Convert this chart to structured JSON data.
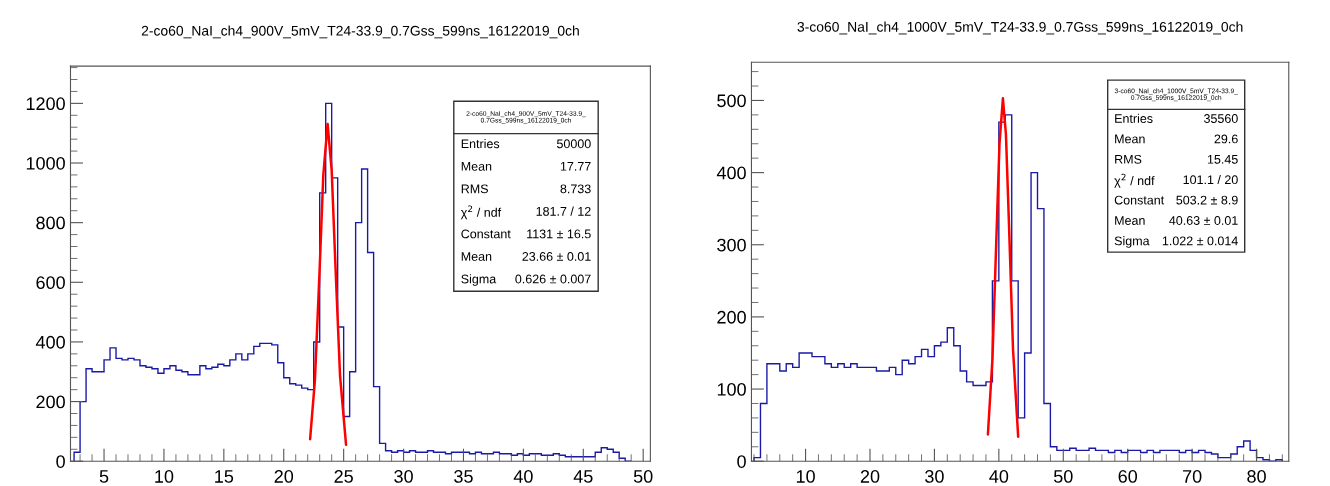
{
  "chart_data": [
    {
      "type": "histogram",
      "title": "2-co60_NaI_ch4_900V_5mV_T24-33.9_0.7Gss_599ns_16122019_0ch",
      "color": "#1a1aa6",
      "bins": [
        2.5,
        3,
        3.5,
        4,
        4.5,
        5,
        5.5,
        6,
        6.5,
        7,
        7.5,
        8,
        8.5,
        9,
        9.5,
        10,
        10.5,
        11,
        11.5,
        12,
        12.5,
        13,
        13.5,
        14,
        14.5,
        15,
        15.5,
        16,
        16.5,
        17,
        17.5,
        18,
        18.5,
        19,
        19.5,
        20,
        20.5,
        21,
        21.5,
        22,
        22.5,
        23,
        23.5,
        24,
        24.5,
        25,
        25.5,
        26,
        26.5,
        27,
        27.5,
        28,
        28.5,
        29,
        29.5,
        30,
        30.5,
        31,
        31.5,
        32,
        32.5,
        33,
        33.5,
        34,
        34.5,
        35,
        35.5,
        36,
        36.5,
        37,
        37.5,
        38,
        38.5,
        39,
        39.5,
        40,
        40.5,
        41,
        41.5,
        42,
        42.5,
        43,
        43.5,
        44,
        44.5,
        45,
        45.5,
        46,
        46.5,
        47,
        47.5,
        48,
        48.5,
        49
      ],
      "values": [
        30,
        200,
        310,
        300,
        300,
        340,
        380,
        345,
        340,
        345,
        340,
        320,
        315,
        310,
        295,
        310,
        320,
        305,
        300,
        290,
        290,
        320,
        310,
        315,
        325,
        320,
        340,
        360,
        340,
        360,
        385,
        395,
        395,
        390,
        330,
        280,
        260,
        255,
        245,
        240,
        400,
        900,
        1200,
        950,
        450,
        150,
        300,
        800,
        980,
        700,
        250,
        60,
        35,
        30,
        35,
        30,
        35,
        30,
        30,
        35,
        30,
        30,
        25,
        30,
        30,
        30,
        25,
        30,
        25,
        25,
        30,
        25,
        25,
        20,
        25,
        20,
        25,
        25,
        20,
        20,
        25,
        20,
        15,
        15,
        15,
        15,
        15,
        30,
        45,
        40,
        30,
        10,
        0
      ],
      "series": [
        {
          "type": "line",
          "color": "#ff0000",
          "x": [
            22.2,
            22.6,
            23.0,
            23.3,
            23.66,
            24.0,
            24.3,
            24.7,
            25.2
          ],
          "values": [
            74,
            271,
            649,
            959,
            1131,
            976,
            670,
            285,
            55
          ]
        }
      ],
      "xlim": [
        2.2,
        50.6
      ],
      "ylim": [
        0,
        1325
      ],
      "xticks": [
        5,
        10,
        15,
        20,
        25,
        30,
        35,
        40,
        45,
        50
      ],
      "yticks": [
        0,
        200,
        400,
        600,
        800,
        1000,
        1200
      ],
      "grid": false,
      "annotations": [
        "2-co60_NaI_ch4_900V_5mV_T24-33.9_0.7Gss_599ns_16122019_0ch",
        "Entries",
        "50000",
        "Mean",
        "17.77",
        "RMS",
        "8.733",
        "χ$^{2}$ / ndf",
        "181.7 / 12",
        "Constant",
        "1131 ± 16.5",
        "Mean",
        "23.66 ± 0.01",
        "Sigma",
        "0.626 ± 0.007"
      ]
    },
    {
      "type": "histogram",
      "title": "3-co60_NaI_ch4_1000V_5mV_T24-33.9_0.7Gss_599ns_16122019_0ch",
      "color": "#1a1aa6",
      "bins": [
        2,
        3,
        4,
        5,
        6,
        7,
        8,
        9,
        10,
        11,
        12,
        13,
        14,
        15,
        16,
        17,
        18,
        19,
        20,
        21,
        22,
        23,
        24,
        25,
        26,
        27,
        28,
        29,
        30,
        31,
        32,
        33,
        34,
        35,
        36,
        37,
        38,
        39,
        40,
        41,
        42,
        43,
        44,
        45,
        46,
        47,
        48,
        49,
        50,
        51,
        52,
        53,
        54,
        55,
        56,
        57,
        58,
        59,
        60,
        61,
        62,
        63,
        64,
        65,
        66,
        67,
        68,
        69,
        70,
        71,
        72,
        73,
        74,
        75,
        76,
        77,
        78,
        79,
        80,
        81,
        82,
        83,
        84
      ],
      "values": [
        5,
        80,
        135,
        135,
        125,
        135,
        130,
        150,
        150,
        145,
        145,
        135,
        130,
        135,
        130,
        135,
        130,
        130,
        130,
        125,
        125,
        130,
        120,
        140,
        135,
        145,
        155,
        145,
        160,
        165,
        185,
        160,
        125,
        110,
        105,
        105,
        110,
        250,
        470,
        480,
        250,
        60,
        150,
        400,
        350,
        80,
        20,
        15,
        15,
        18,
        15,
        15,
        18,
        15,
        15,
        12,
        15,
        12,
        15,
        15,
        12,
        15,
        12,
        15,
        15,
        15,
        12,
        15,
        12,
        15,
        12,
        10,
        5,
        5,
        10,
        20,
        28,
        15,
        5,
        2,
        0,
        2
      ],
      "series": [
        {
          "type": "line",
          "color": "#ff0000",
          "x": [
            38.3,
            39.0,
            39.6,
            40.1,
            40.63,
            41.1,
            41.6,
            42.2,
            43.0
          ],
          "values": [
            37,
            141,
            304,
            440,
            503,
            453,
            321,
            155,
            34
          ]
        }
      ],
      "xlim": [
        1.6,
        85
      ],
      "ylim": [
        0,
        553
      ],
      "xticks": [
        10,
        20,
        30,
        40,
        50,
        60,
        70,
        80
      ],
      "yticks": [
        0,
        100,
        200,
        300,
        400,
        500
      ],
      "grid": false,
      "annotations": [
        "3-co60_NaI_ch4_1000V_5mV_T24-33.9_0.7Gss_599ns_16122019_0ch",
        "Entries",
        "35560",
        "Mean",
        "29.6",
        "RMS",
        "15.45",
        "χ$^{2}$ / ndf",
        "101.1 / 20",
        "Constant",
        "503.2 ± 8.9",
        "Mean",
        "40.63 ± 0.01",
        "Sigma",
        "1.022 ± 0.014"
      ]
    }
  ]
}
